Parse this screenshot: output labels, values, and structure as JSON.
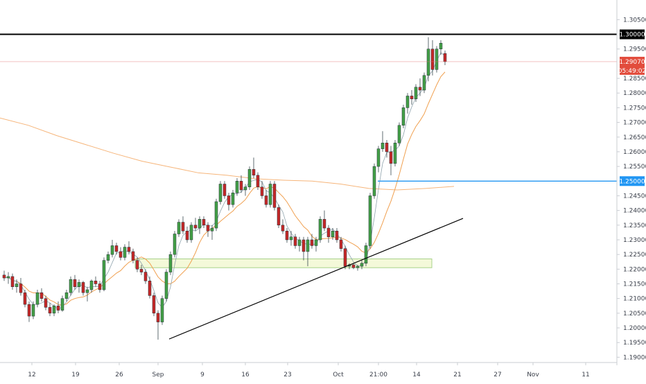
{
  "chart_data": {
    "type": "candlestick",
    "instrument_unit": "price",
    "price_range": [
      1.1882,
      1.3117
    ],
    "y_axis_ticks": [
      "1.30500",
      "1.30000",
      "1.29500",
      "1.29070",
      "1.28500",
      "1.28000",
      "1.27500",
      "1.27000",
      "1.26500",
      "1.26000",
      "1.25500",
      "1.25000",
      "1.24500",
      "1.24000",
      "1.23500",
      "1.23000",
      "1.22500",
      "1.22000",
      "1.21500",
      "1.21000",
      "1.20500",
      "1.20000",
      "1.19500",
      "1.19000"
    ],
    "x_axis_labels": [
      "12",
      "19",
      "26",
      "Sep",
      "9",
      "16",
      "23",
      "Oct",
      "21:00",
      "14",
      "21",
      "27",
      "Nov",
      "11"
    ],
    "current_price_label": "1.29070",
    "countdown_label": "05:49:02",
    "highlighted_levels": [
      {
        "price_label": "1.30000",
        "price": 1.3,
        "color": "#000000"
      },
      {
        "price_label": "1.25000",
        "price": 1.25,
        "color": "#2196f3"
      }
    ],
    "current_price_line": {
      "price": 1.2907,
      "color": "#e57373"
    },
    "trendline": {
      "from_price": 1.1962,
      "to_price": 1.2373,
      "color": "#000000"
    },
    "support_zone": {
      "low": 1.2205,
      "high": 1.2235,
      "color": "#cde8b0"
    },
    "moving_averages": [
      {
        "color": "#f4a259",
        "description": "long-period MA",
        "values": [
          1.2715,
          1.269,
          1.2655,
          1.2625,
          1.2595,
          1.2568,
          1.2548,
          1.2528,
          1.252,
          1.2508,
          1.2503,
          1.25,
          1.249,
          1.2475,
          1.247,
          1.2475,
          1.2482
        ]
      },
      {
        "color": "#f0a050",
        "description": "medium MA"
      },
      {
        "color": "#90a4ae",
        "description": "short MA"
      }
    ],
    "colors": {
      "up": "#26a69a",
      "down": "#ef5350",
      "up_body": "#43a047",
      "down_body": "#c62828"
    },
    "candles": [
      [
        1.218,
        1.2195,
        1.216,
        1.217
      ],
      [
        1.217,
        1.219,
        1.215,
        1.2175
      ],
      [
        1.2175,
        1.2185,
        1.213,
        1.214
      ],
      [
        1.214,
        1.2165,
        1.212,
        1.215
      ],
      [
        1.215,
        1.217,
        1.211,
        1.212
      ],
      [
        1.212,
        1.213,
        1.207,
        1.208
      ],
      [
        1.208,
        1.209,
        1.202,
        1.204
      ],
      [
        1.204,
        1.209,
        1.203,
        1.208
      ],
      [
        1.208,
        1.213,
        1.207,
        1.212
      ],
      [
        1.212,
        1.2135,
        1.209,
        1.21
      ],
      [
        1.21,
        1.211,
        1.206,
        1.207
      ],
      [
        1.207,
        1.2085,
        1.204,
        1.205
      ],
      [
        1.205,
        1.208,
        1.204,
        1.2075
      ],
      [
        1.2075,
        1.209,
        1.205,
        1.206
      ],
      [
        1.206,
        1.211,
        1.2055,
        1.21
      ],
      [
        1.21,
        1.213,
        1.209,
        1.212
      ],
      [
        1.212,
        1.2175,
        1.211,
        1.2165
      ],
      [
        1.2165,
        1.218,
        1.213,
        1.214
      ],
      [
        1.214,
        1.2165,
        1.212,
        1.2155
      ],
      [
        1.2155,
        1.216,
        1.211,
        1.212
      ],
      [
        1.212,
        1.214,
        1.209,
        1.213
      ],
      [
        1.213,
        1.2165,
        1.212,
        1.216
      ],
      [
        1.216,
        1.2175,
        1.214,
        1.215
      ],
      [
        1.215,
        1.216,
        1.212,
        1.213
      ],
      [
        1.213,
        1.224,
        1.2125,
        1.223
      ],
      [
        1.223,
        1.226,
        1.222,
        1.225
      ],
      [
        1.225,
        1.23,
        1.224,
        1.228
      ],
      [
        1.228,
        1.229,
        1.225,
        1.226
      ],
      [
        1.226,
        1.2275,
        1.223,
        1.224
      ],
      [
        1.224,
        1.2285,
        1.223,
        1.2275
      ],
      [
        1.2275,
        1.2295,
        1.225,
        1.226
      ],
      [
        1.226,
        1.227,
        1.222,
        1.223
      ],
      [
        1.223,
        1.224,
        1.219,
        1.22
      ],
      [
        1.22,
        1.2215,
        1.218,
        1.219
      ],
      [
        1.219,
        1.22,
        1.215,
        1.216
      ],
      [
        1.216,
        1.2175,
        1.21,
        1.211
      ],
      [
        1.211,
        1.212,
        1.204,
        1.205
      ],
      [
        1.205,
        1.206,
        1.196,
        1.202
      ],
      [
        1.202,
        1.211,
        1.201,
        1.21
      ],
      [
        1.21,
        1.22,
        1.209,
        1.219
      ],
      [
        1.219,
        1.226,
        1.218,
        1.225
      ],
      [
        1.225,
        1.233,
        1.224,
        1.232
      ],
      [
        1.232,
        1.237,
        1.231,
        1.236
      ],
      [
        1.236,
        1.238,
        1.232,
        1.233
      ],
      [
        1.233,
        1.2345,
        1.229,
        1.23
      ],
      [
        1.23,
        1.236,
        1.229,
        1.235
      ],
      [
        1.235,
        1.2375,
        1.233,
        1.234
      ],
      [
        1.234,
        1.238,
        1.232,
        1.237
      ],
      [
        1.237,
        1.238,
        1.234,
        1.235
      ],
      [
        1.235,
        1.236,
        1.231,
        1.233
      ],
      [
        1.233,
        1.235,
        1.23,
        1.234
      ],
      [
        1.234,
        1.244,
        1.233,
        1.243
      ],
      [
        1.243,
        1.25,
        1.242,
        1.249
      ],
      [
        1.249,
        1.25,
        1.244,
        1.245
      ],
      [
        1.245,
        1.246,
        1.24,
        1.242
      ],
      [
        1.242,
        1.247,
        1.241,
        1.246
      ],
      [
        1.246,
        1.251,
        1.245,
        1.25
      ],
      [
        1.25,
        1.252,
        1.246,
        1.247
      ],
      [
        1.247,
        1.249,
        1.245,
        1.248
      ],
      [
        1.248,
        1.255,
        1.247,
        1.254
      ],
      [
        1.254,
        1.258,
        1.251,
        1.252
      ],
      [
        1.252,
        1.253,
        1.247,
        1.248
      ],
      [
        1.248,
        1.25,
        1.244,
        1.245
      ],
      [
        1.245,
        1.247,
        1.241,
        1.242
      ],
      [
        1.242,
        1.25,
        1.241,
        1.249
      ],
      [
        1.249,
        1.25,
        1.24,
        1.241
      ],
      [
        1.241,
        1.242,
        1.234,
        1.235
      ],
      [
        1.235,
        1.237,
        1.232,
        1.233
      ],
      [
        1.233,
        1.234,
        1.229,
        1.23
      ],
      [
        1.23,
        1.233,
        1.228,
        1.231
      ],
      [
        1.231,
        1.232,
        1.227,
        1.228
      ],
      [
        1.228,
        1.231,
        1.226,
        1.23
      ],
      [
        1.23,
        1.231,
        1.223,
        1.226
      ],
      [
        1.226,
        1.231,
        1.221,
        1.23
      ],
      [
        1.23,
        1.232,
        1.227,
        1.228
      ],
      [
        1.228,
        1.231,
        1.226,
        1.23
      ],
      [
        1.23,
        1.238,
        1.229,
        1.237
      ],
      [
        1.237,
        1.24,
        1.233,
        1.234
      ],
      [
        1.234,
        1.235,
        1.229,
        1.231
      ],
      [
        1.231,
        1.234,
        1.23,
        1.233
      ],
      [
        1.233,
        1.234,
        1.229,
        1.23
      ],
      [
        1.23,
        1.231,
        1.226,
        1.227
      ],
      [
        1.227,
        1.228,
        1.22,
        1.221
      ],
      [
        1.221,
        1.222,
        1.22,
        1.2215
      ],
      [
        1.2215,
        1.222,
        1.22,
        1.2205
      ],
      [
        1.2205,
        1.2215,
        1.2195,
        1.221
      ],
      [
        1.221,
        1.223,
        1.22,
        1.222
      ],
      [
        1.222,
        1.229,
        1.221,
        1.228
      ],
      [
        1.228,
        1.246,
        1.227,
        1.245
      ],
      [
        1.245,
        1.256,
        1.244,
        1.255
      ],
      [
        1.255,
        1.262,
        1.253,
        1.261
      ],
      [
        1.261,
        1.267,
        1.26,
        1.263
      ],
      [
        1.263,
        1.264,
        1.258,
        1.26
      ],
      [
        1.26,
        1.262,
        1.252,
        1.256
      ],
      [
        1.256,
        1.264,
        1.255,
        1.263
      ],
      [
        1.263,
        1.27,
        1.262,
        1.269
      ],
      [
        1.269,
        1.276,
        1.268,
        1.275
      ],
      [
        1.275,
        1.28,
        1.273,
        1.279
      ],
      [
        1.279,
        1.281,
        1.276,
        1.278
      ],
      [
        1.278,
        1.283,
        1.277,
        1.282
      ],
      [
        1.282,
        1.285,
        1.279,
        1.281
      ],
      [
        1.281,
        1.287,
        1.28,
        1.286
      ],
      [
        1.286,
        1.299,
        1.284,
        1.295
      ],
      [
        1.295,
        1.298,
        1.286,
        1.288
      ],
      [
        1.288,
        1.296,
        1.287,
        1.295
      ],
      [
        1.295,
        1.298,
        1.293,
        1.297
      ],
      [
        1.2935,
        1.2945,
        1.2895,
        1.2907
      ]
    ]
  }
}
